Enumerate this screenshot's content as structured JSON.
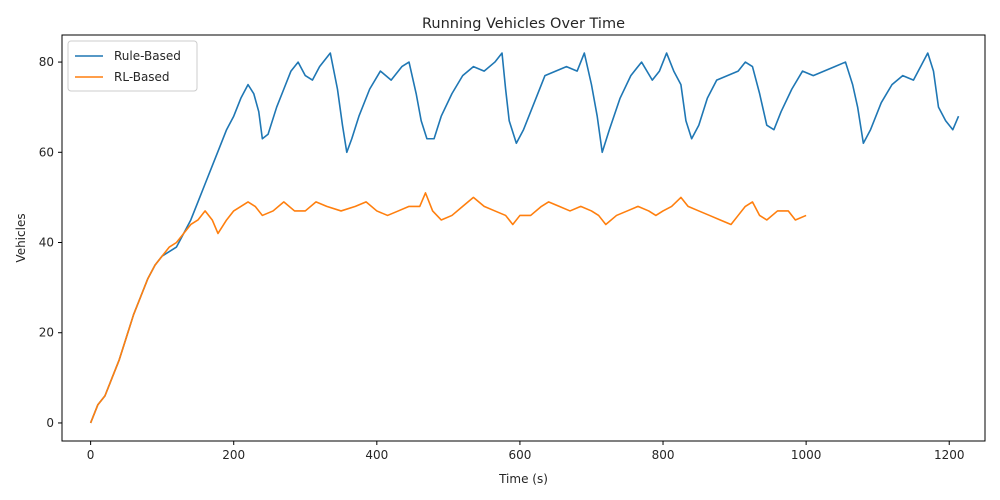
{
  "chart_data": {
    "type": "line",
    "title": "Running Vehicles Over Time",
    "xlabel": "Time (s)",
    "ylabel": "Vehicles",
    "xlim": [
      -40,
      1250
    ],
    "ylim": [
      -4,
      86
    ],
    "xticks": [
      0,
      200,
      400,
      600,
      800,
      1000,
      1200
    ],
    "yticks": [
      0,
      20,
      40,
      60,
      80
    ],
    "grid": false,
    "legend": "top-left",
    "series": [
      {
        "name": "Rule-Based",
        "color": "#1f77b4",
        "points": [
          [
            0,
            0
          ],
          [
            10,
            4
          ],
          [
            20,
            6
          ],
          [
            30,
            10
          ],
          [
            40,
            14
          ],
          [
            50,
            19
          ],
          [
            60,
            24
          ],
          [
            70,
            28
          ],
          [
            80,
            32
          ],
          [
            90,
            35
          ],
          [
            100,
            37
          ],
          [
            110,
            38
          ],
          [
            120,
            39
          ],
          [
            130,
            42
          ],
          [
            140,
            45
          ],
          [
            150,
            49
          ],
          [
            160,
            53
          ],
          [
            170,
            57
          ],
          [
            180,
            61
          ],
          [
            190,
            65
          ],
          [
            200,
            68
          ],
          [
            210,
            72
          ],
          [
            220,
            75
          ],
          [
            228,
            73
          ],
          [
            235,
            69
          ],
          [
            240,
            63
          ],
          [
            248,
            64
          ],
          [
            260,
            70
          ],
          [
            270,
            74
          ],
          [
            280,
            78
          ],
          [
            290,
            80
          ],
          [
            300,
            77
          ],
          [
            310,
            76
          ],
          [
            320,
            79
          ],
          [
            335,
            82
          ],
          [
            345,
            74
          ],
          [
            352,
            66
          ],
          [
            358,
            60
          ],
          [
            365,
            63
          ],
          [
            375,
            68
          ],
          [
            390,
            74
          ],
          [
            405,
            78
          ],
          [
            420,
            76
          ],
          [
            435,
            79
          ],
          [
            445,
            80
          ],
          [
            455,
            73
          ],
          [
            462,
            67
          ],
          [
            470,
            63
          ],
          [
            480,
            63
          ],
          [
            490,
            68
          ],
          [
            505,
            73
          ],
          [
            520,
            77
          ],
          [
            535,
            79
          ],
          [
            550,
            78
          ],
          [
            565,
            80
          ],
          [
            575,
            82
          ],
          [
            580,
            74
          ],
          [
            585,
            67
          ],
          [
            595,
            62
          ],
          [
            605,
            65
          ],
          [
            620,
            71
          ],
          [
            635,
            77
          ],
          [
            650,
            78
          ],
          [
            665,
            79
          ],
          [
            680,
            78
          ],
          [
            690,
            82
          ],
          [
            700,
            75
          ],
          [
            708,
            68
          ],
          [
            715,
            60
          ],
          [
            725,
            65
          ],
          [
            740,
            72
          ],
          [
            755,
            77
          ],
          [
            770,
            80
          ],
          [
            785,
            76
          ],
          [
            795,
            78
          ],
          [
            805,
            82
          ],
          [
            815,
            78
          ],
          [
            825,
            75
          ],
          [
            832,
            67
          ],
          [
            840,
            63
          ],
          [
            850,
            66
          ],
          [
            862,
            72
          ],
          [
            875,
            76
          ],
          [
            890,
            77
          ],
          [
            905,
            78
          ],
          [
            915,
            80
          ],
          [
            925,
            79
          ],
          [
            935,
            73
          ],
          [
            945,
            66
          ],
          [
            955,
            65
          ],
          [
            965,
            69
          ],
          [
            980,
            74
          ],
          [
            995,
            78
          ],
          [
            1010,
            77
          ],
          [
            1025,
            78
          ],
          [
            1040,
            79
          ],
          [
            1055,
            80
          ],
          [
            1065,
            75
          ],
          [
            1072,
            70
          ],
          [
            1080,
            62
          ],
          [
            1090,
            65
          ],
          [
            1105,
            71
          ],
          [
            1120,
            75
          ],
          [
            1135,
            77
          ],
          [
            1150,
            76
          ],
          [
            1160,
            79
          ],
          [
            1170,
            82
          ],
          [
            1178,
            78
          ],
          [
            1185,
            70
          ],
          [
            1195,
            67
          ],
          [
            1205,
            65
          ],
          [
            1213,
            68
          ]
        ]
      },
      {
        "name": "RL-Based",
        "color": "#ff7f0e",
        "points": [
          [
            0,
            0
          ],
          [
            10,
            4
          ],
          [
            20,
            6
          ],
          [
            30,
            10
          ],
          [
            40,
            14
          ],
          [
            50,
            19
          ],
          [
            60,
            24
          ],
          [
            70,
            28
          ],
          [
            80,
            32
          ],
          [
            90,
            35
          ],
          [
            100,
            37
          ],
          [
            110,
            39
          ],
          [
            120,
            40
          ],
          [
            130,
            42
          ],
          [
            140,
            44
          ],
          [
            150,
            45
          ],
          [
            160,
            47
          ],
          [
            170,
            45
          ],
          [
            178,
            42
          ],
          [
            190,
            45
          ],
          [
            200,
            47
          ],
          [
            210,
            48
          ],
          [
            220,
            49
          ],
          [
            230,
            48
          ],
          [
            240,
            46
          ],
          [
            255,
            47
          ],
          [
            270,
            49
          ],
          [
            285,
            47
          ],
          [
            300,
            47
          ],
          [
            315,
            49
          ],
          [
            330,
            48
          ],
          [
            350,
            47
          ],
          [
            370,
            48
          ],
          [
            385,
            49
          ],
          [
            400,
            47
          ],
          [
            415,
            46
          ],
          [
            430,
            47
          ],
          [
            445,
            48
          ],
          [
            460,
            48
          ],
          [
            468,
            51
          ],
          [
            478,
            47
          ],
          [
            490,
            45
          ],
          [
            505,
            46
          ],
          [
            520,
            48
          ],
          [
            535,
            50
          ],
          [
            550,
            48
          ],
          [
            565,
            47
          ],
          [
            580,
            46
          ],
          [
            590,
            44
          ],
          [
            600,
            46
          ],
          [
            615,
            46
          ],
          [
            630,
            48
          ],
          [
            640,
            49
          ],
          [
            655,
            48
          ],
          [
            670,
            47
          ],
          [
            685,
            48
          ],
          [
            700,
            47
          ],
          [
            710,
            46
          ],
          [
            720,
            44
          ],
          [
            735,
            46
          ],
          [
            750,
            47
          ],
          [
            765,
            48
          ],
          [
            780,
            47
          ],
          [
            790,
            46
          ],
          [
            800,
            47
          ],
          [
            812,
            48
          ],
          [
            825,
            50
          ],
          [
            835,
            48
          ],
          [
            850,
            47
          ],
          [
            865,
            46
          ],
          [
            880,
            45
          ],
          [
            895,
            44
          ],
          [
            905,
            46
          ],
          [
            915,
            48
          ],
          [
            925,
            49
          ],
          [
            935,
            46
          ],
          [
            945,
            45
          ],
          [
            960,
            47
          ],
          [
            975,
            47
          ],
          [
            985,
            45
          ],
          [
            1000,
            46
          ]
        ]
      }
    ]
  }
}
